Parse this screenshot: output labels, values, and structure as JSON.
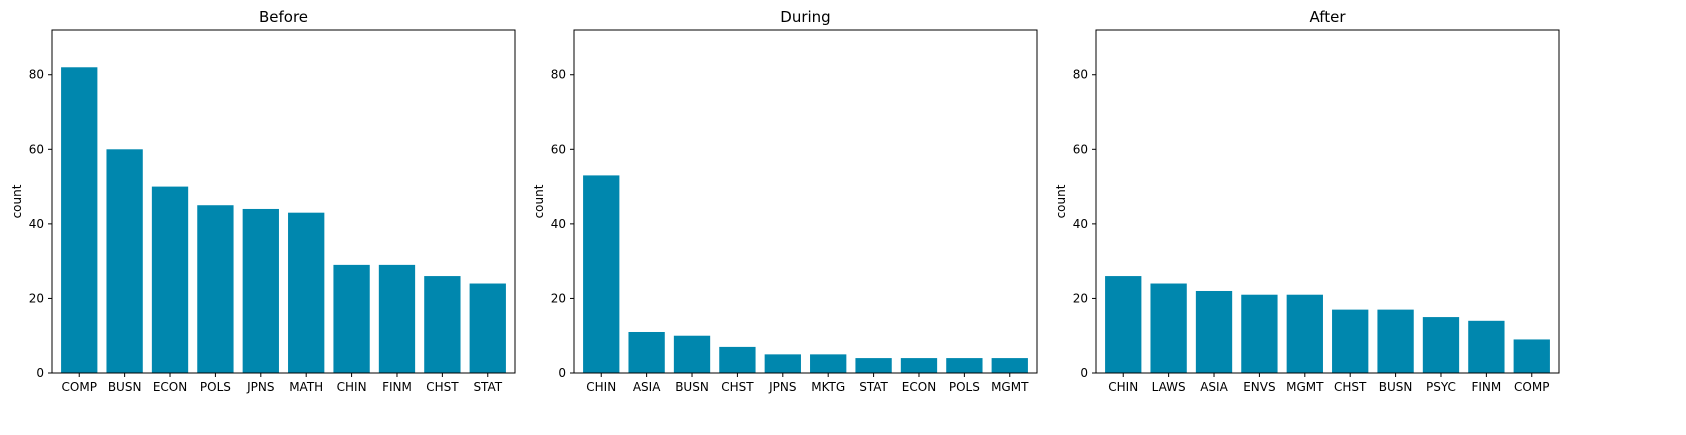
{
  "chart_data": [
    {
      "type": "bar",
      "title": "Before",
      "xlabel": "",
      "ylabel": "count",
      "ylim": [
        0,
        92
      ],
      "yticks": [
        0,
        20,
        40,
        60,
        80
      ],
      "color": "#0087ae",
      "categories": [
        "COMP",
        "BUSN",
        "ECON",
        "POLS",
        "JPNS",
        "MATH",
        "CHIN",
        "FINM",
        "CHST",
        "STAT"
      ],
      "values": [
        82,
        60,
        50,
        45,
        44,
        43,
        29,
        29,
        26,
        24
      ]
    },
    {
      "type": "bar",
      "title": "During",
      "xlabel": "",
      "ylabel": "count",
      "ylim": [
        0,
        92
      ],
      "yticks": [
        0,
        20,
        40,
        60,
        80
      ],
      "color": "#0087ae",
      "categories": [
        "CHIN",
        "ASIA",
        "BUSN",
        "CHST",
        "JPNS",
        "MKTG",
        "STAT",
        "ECON",
        "POLS",
        "MGMT"
      ],
      "values": [
        53,
        11,
        10,
        7,
        5,
        5,
        4,
        4,
        4,
        4
      ]
    },
    {
      "type": "bar",
      "title": "After",
      "xlabel": "",
      "ylabel": "count",
      "ylim": [
        0,
        92
      ],
      "yticks": [
        0,
        20,
        40,
        60,
        80
      ],
      "color": "#0087ae",
      "categories": [
        "CHIN",
        "LAWS",
        "ASIA",
        "ENVS",
        "MGMT",
        "CHST",
        "BUSN",
        "PSYC",
        "FINM",
        "COMP"
      ],
      "values": [
        26,
        24,
        22,
        21,
        21,
        17,
        17,
        15,
        14,
        9
      ]
    }
  ]
}
